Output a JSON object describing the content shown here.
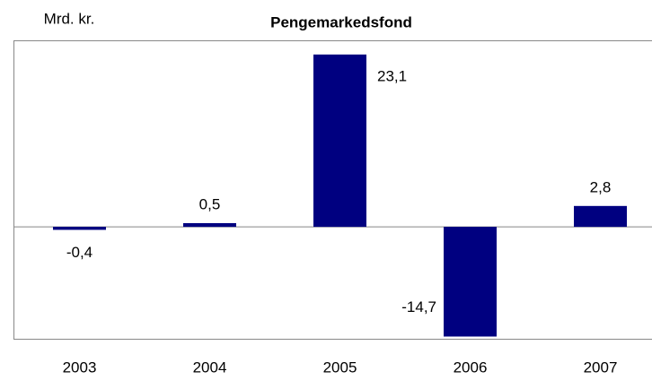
{
  "chart_data": {
    "type": "bar",
    "title": "Pengemarkedsfond",
    "y_label": "Mrd. kr.",
    "categories": [
      "2003",
      "2004",
      "2005",
      "2006",
      "2007"
    ],
    "values": [
      -0.4,
      0.5,
      23.1,
      -14.7,
      2.8
    ],
    "value_labels": [
      "-0,4",
      "0,5",
      "23,1",
      "-14,7",
      "2,8"
    ],
    "color": "#000080",
    "ylim": [
      -15,
      25
    ]
  }
}
